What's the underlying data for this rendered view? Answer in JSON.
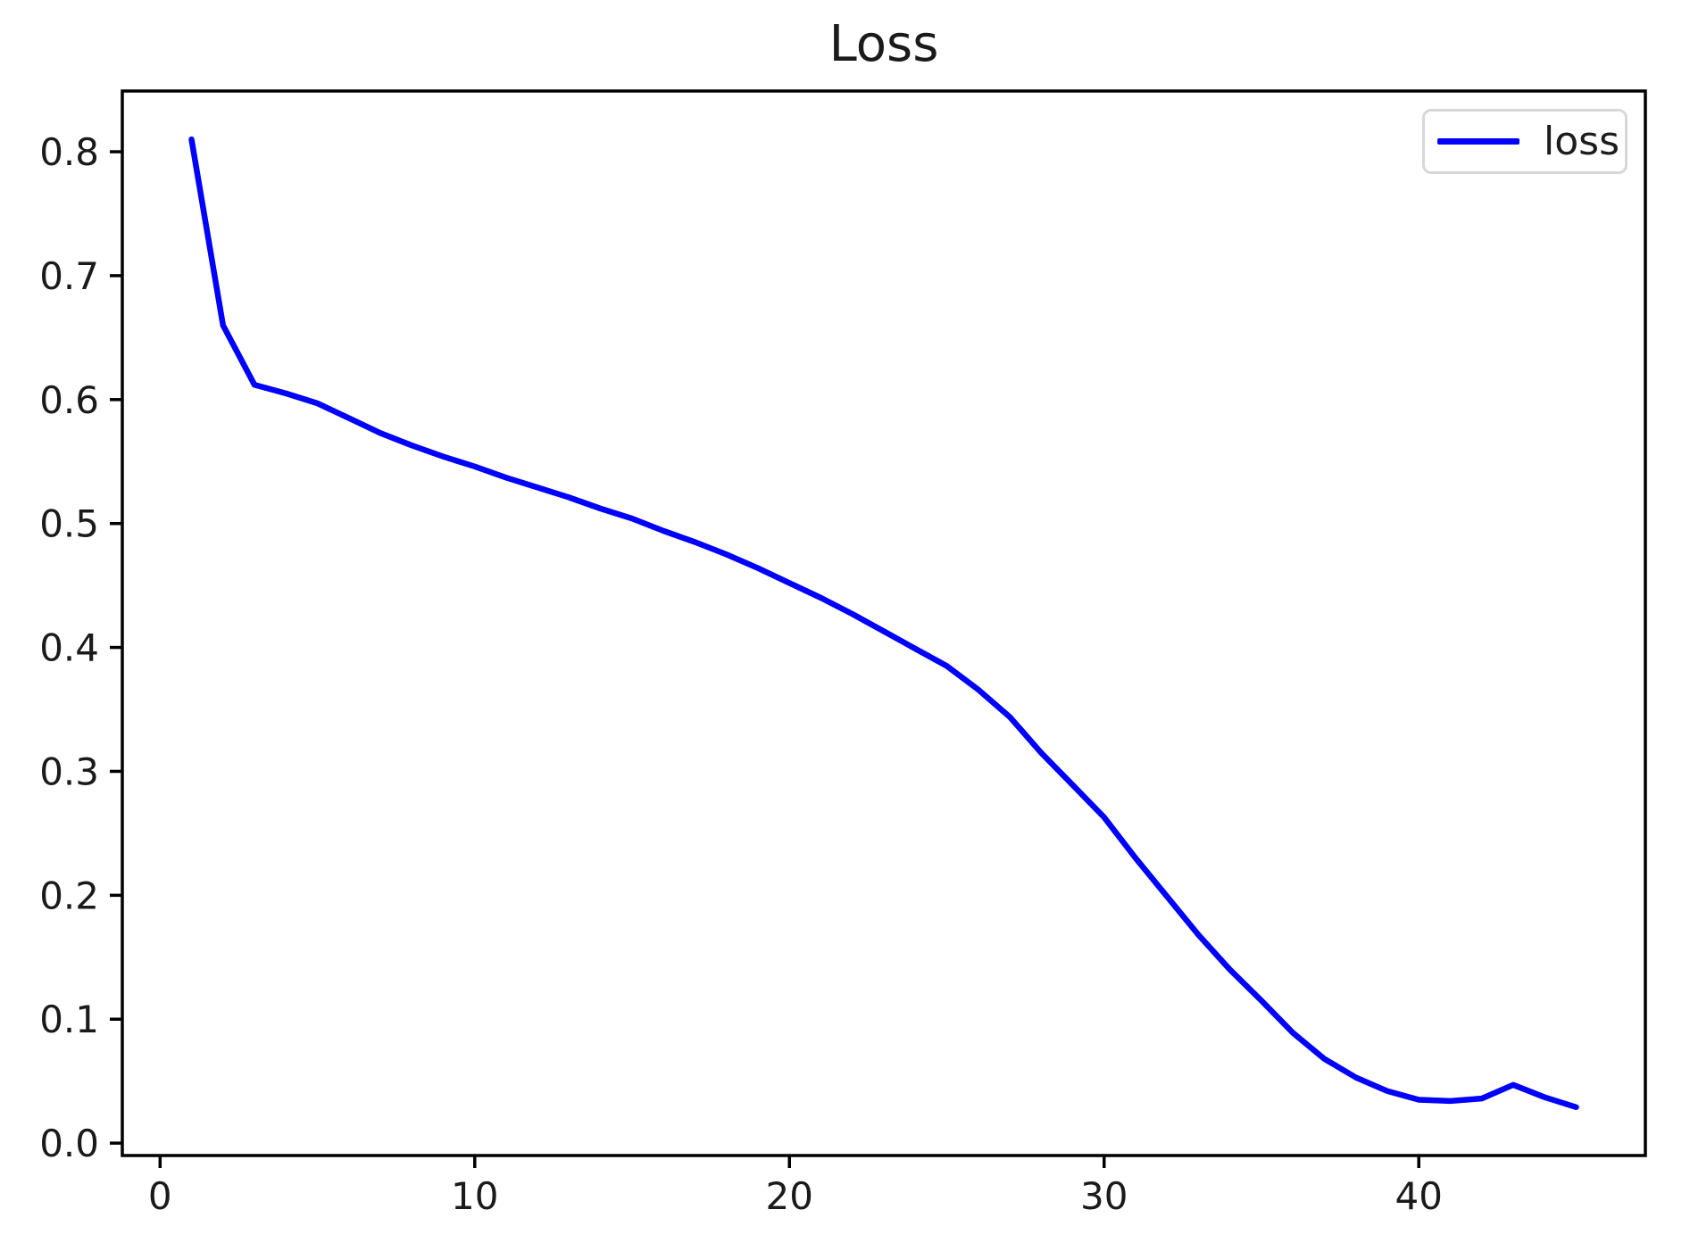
{
  "figure": {
    "background": "#ffffff",
    "text_color": "#1a1a1a",
    "spine_color": "#000000"
  },
  "legend": {
    "label": "loss",
    "line_color": "#0000ff",
    "position": "upper right"
  },
  "chart_data": {
    "type": "line",
    "title": "Loss",
    "xlabel": "",
    "ylabel": "",
    "xlim": [
      -1.2,
      47.2
    ],
    "ylim": [
      -0.01,
      0.849
    ],
    "xticks": [
      0,
      10,
      20,
      30,
      40
    ],
    "xtick_labels": [
      "0",
      "10",
      "20",
      "30",
      "40"
    ],
    "yticks": [
      0.0,
      0.1,
      0.2,
      0.3,
      0.4,
      0.5,
      0.6,
      0.7,
      0.8
    ],
    "ytick_labels": [
      "0.0",
      "0.1",
      "0.2",
      "0.3",
      "0.4",
      "0.5",
      "0.6",
      "0.7",
      "0.8"
    ],
    "grid": false,
    "legend_position": "upper right",
    "series": [
      {
        "name": "loss",
        "color": "#0000ff",
        "x": [
          1,
          2,
          3,
          4,
          5,
          6,
          7,
          8,
          9,
          10,
          11,
          12,
          13,
          14,
          15,
          16,
          17,
          18,
          19,
          20,
          21,
          22,
          23,
          24,
          25,
          26,
          27,
          28,
          29,
          30,
          31,
          32,
          33,
          34,
          35,
          36,
          37,
          38,
          39,
          40,
          41,
          42,
          43,
          44,
          45
        ],
        "y": [
          0.81,
          0.66,
          0.612,
          0.605,
          0.597,
          0.585,
          0.573,
          0.563,
          0.554,
          0.546,
          0.537,
          0.529,
          0.521,
          0.512,
          0.504,
          0.494,
          0.485,
          0.475,
          0.464,
          0.452,
          0.44,
          0.427,
          0.413,
          0.399,
          0.385,
          0.366,
          0.344,
          0.315,
          0.289,
          0.263,
          0.23,
          0.199,
          0.168,
          0.14,
          0.115,
          0.089,
          0.068,
          0.053,
          0.042,
          0.035,
          0.034,
          0.036,
          0.047,
          0.037,
          0.029
        ]
      }
    ]
  }
}
